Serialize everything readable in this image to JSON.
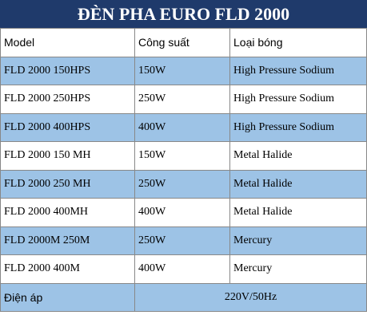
{
  "header": {
    "title": "ĐÈN PHA EURO FLD 2000"
  },
  "table": {
    "columns": [
      "Model",
      "Công suất",
      "Loại bóng"
    ],
    "rows": [
      [
        "FLD 2000 150HPS",
        "150W",
        "High Pressure Sodium"
      ],
      [
        "FLD 2000 250HPS",
        "250W",
        "High Pressure Sodium"
      ],
      [
        "FLD 2000 400HPS",
        "400W",
        "High Pressure Sodium"
      ],
      [
        "FLD 2000 150 MH",
        "150W",
        "Metal Halide"
      ],
      [
        "FLD 2000 250 MH",
        "250W",
        "Metal Halide"
      ],
      [
        "FLD 2000 400MH",
        "400W",
        "Metal Halide"
      ],
      [
        "FLD 2000M 250M",
        "250W",
        "Mercury"
      ],
      [
        "FLD 2000 400M",
        "400W",
        "Mercury"
      ]
    ],
    "footer": [
      "Điện áp",
      "220V/50Hz"
    ]
  }
}
